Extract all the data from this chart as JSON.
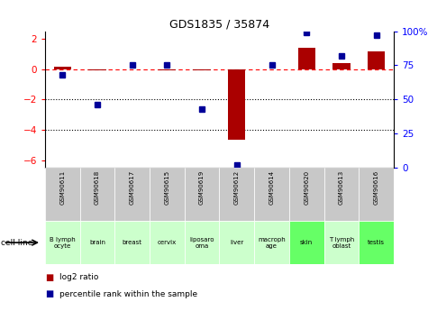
{
  "title": "GDS1835 / 35874",
  "gsm_labels": [
    "GSM90611",
    "GSM90618",
    "GSM90617",
    "GSM90615",
    "GSM90619",
    "GSM90612",
    "GSM90614",
    "GSM90620",
    "GSM90613",
    "GSM90616"
  ],
  "cell_labels": [
    "B lymph\nocyte",
    "brain",
    "breast",
    "cervix",
    "liposaro\noma",
    "liver",
    "macroph\nage",
    "skin",
    "T lymph\noblast",
    "testis"
  ],
  "cell_colors": [
    "#ccffcc",
    "#ccffcc",
    "#ccffcc",
    "#ccffcc",
    "#ccffcc",
    "#ccffcc",
    "#ccffcc",
    "#66ff66",
    "#ccffcc",
    "#66ff66"
  ],
  "log2_ratio": [
    0.15,
    -0.05,
    0.0,
    -0.05,
    -0.1,
    -4.65,
    0.0,
    1.4,
    0.4,
    1.15
  ],
  "percentile_rank": [
    68,
    46,
    75,
    75,
    43,
    2,
    75,
    99,
    82,
    97
  ],
  "ylim_left": [
    -6.5,
    2.5
  ],
  "ylim_right": [
    0,
    100
  ],
  "left_ticks": [
    2,
    0,
    -2,
    -4,
    -6
  ],
  "right_ticks": [
    100,
    75,
    50,
    25,
    0
  ],
  "bar_color_red": "#aa0000",
  "bar_color_blue": "#000099",
  "legend_red": "log2 ratio",
  "legend_blue": "percentile rank within the sample",
  "cell_line_label": "cell line",
  "gsm_bg_color": "#c8c8c8"
}
